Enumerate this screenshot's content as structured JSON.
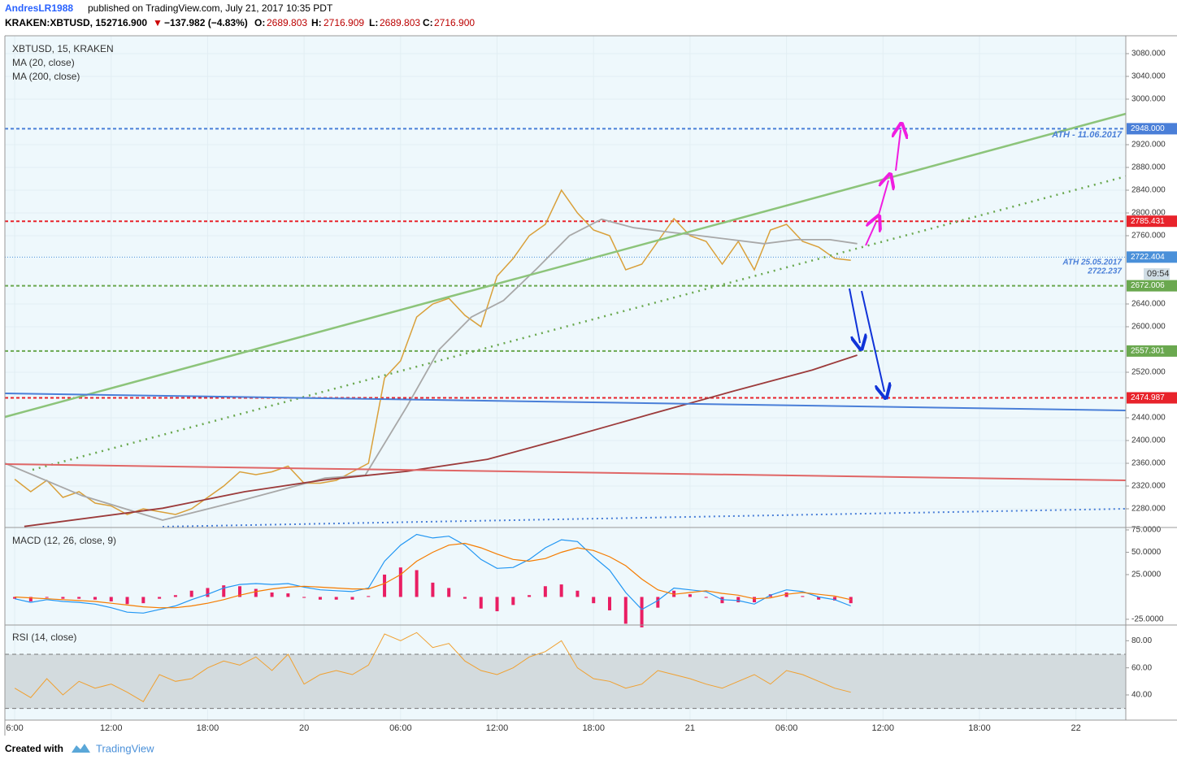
{
  "header": {
    "author": "AndresLR1988",
    "published": "published on TradingView.com, July 21, 2017 10:35 PDT",
    "symbol": "KRAKEN:XBTUSD, 15",
    "last": "2716.900",
    "arrow": "▼",
    "change": "−137.982 (−4.83%)",
    "open_label": "O:",
    "open": "2689.803",
    "high_label": "H:",
    "high": "2716.909",
    "low_label": "L:",
    "low": "2689.803",
    "close_label": "C:",
    "close": "2716.900"
  },
  "footer": {
    "created": "Created with",
    "brand": "TradingView"
  },
  "chart_data": [
    {
      "type": "line",
      "legend": [
        "XBTUSD, 15, KRAKEN",
        "MA (20, close)",
        "MA (200, close)"
      ],
      "x": [
        6,
        7,
        8,
        9,
        10,
        11,
        12,
        13,
        14,
        15,
        16,
        17,
        18,
        19,
        20,
        21,
        22,
        23,
        24,
        25,
        26,
        27,
        28,
        29,
        30,
        31,
        32,
        33,
        34,
        35,
        36,
        37,
        38,
        39,
        40,
        41,
        42,
        43,
        44,
        45,
        46,
        47,
        48,
        49,
        50,
        51,
        52,
        53,
        54,
        55,
        56,
        57,
        58
      ],
      "series": [
        {
          "name": "XBTUSD",
          "color": "#d9a03a",
          "values": [
            2332,
            2310,
            2330,
            2300,
            2310,
            2290,
            2285,
            2270,
            2280,
            2275,
            2270,
            2280,
            2300,
            2320,
            2345,
            2340,
            2345,
            2355,
            2325,
            2325,
            2330,
            2345,
            2360,
            2510,
            2540,
            2617,
            2640,
            2650,
            2620,
            2600,
            2689,
            2720,
            2760,
            2780,
            2840,
            2800,
            2770,
            2760,
            2700,
            2710,
            2750,
            2790,
            2760,
            2750,
            2710,
            2750,
            2700,
            2770,
            2780,
            2750,
            2740,
            2720,
            2716.9
          ]
        },
        {
          "name": "MA (20, close)",
          "color": "#a8a8a8",
          "x": [
            5.4,
            10.2,
            15.2,
            20.3,
            25.3,
            27.8,
            30.4,
            32.4,
            34.4,
            36.4,
            38.5,
            40.5,
            42.5,
            44.5,
            46.5,
            48.6,
            50.6,
            52.6,
            54.6,
            56.7,
            58.4
          ],
          "values": [
            2360,
            2303,
            2260,
            2296,
            2334,
            2339,
            2460,
            2560,
            2617,
            2646,
            2703,
            2760,
            2789,
            2774,
            2767,
            2760,
            2753,
            2746,
            2753,
            2753,
            2746
          ]
        },
        {
          "name": "MA (200, close)",
          "color": "#9c3b3b",
          "x": [
            6.6,
            15.2,
            20.3,
            25.3,
            30.4,
            35.4,
            40.5,
            45.5,
            50.6,
            55.6,
            58.4
          ],
          "values": [
            2249,
            2281,
            2310,
            2331,
            2346,
            2367,
            2406,
            2446,
            2486,
            2524,
            2550
          ]
        }
      ],
      "levels": [
        {
          "value": 2948,
          "label": "2948.000",
          "color": "#4a7fd8"
        },
        {
          "value": 2785.431,
          "label": "2785.431",
          "color": "#e8232b"
        },
        {
          "value": 2722.404,
          "label": "2722.404",
          "color": "#4a90d9"
        },
        {
          "value": 2672.006,
          "label": "2672.006",
          "color": "#6aa84f"
        },
        {
          "value": 2557.301,
          "label": "2557.301",
          "color": "#6aa84f"
        },
        {
          "value": 2474.987,
          "label": "2474.987",
          "color": "#e8232b"
        }
      ],
      "annotations": [
        "ATH - 11.06.2017",
        "ATH 25.05.2017",
        "2722.237",
        "09:54"
      ],
      "xlim": [
        5.39,
        75.1
      ],
      "xticks": [
        {
          "value": 6,
          "label": "6:00"
        },
        {
          "value": 12,
          "label": "12:00"
        },
        {
          "value": 18,
          "label": "18:00"
        },
        {
          "value": 24,
          "label": "20"
        },
        {
          "value": 30,
          "label": "06:00"
        },
        {
          "value": 36,
          "label": "12:00"
        },
        {
          "value": 42,
          "label": "18:00"
        },
        {
          "value": 48,
          "label": "21"
        },
        {
          "value": 54,
          "label": "06:00"
        },
        {
          "value": 60,
          "label": "12:00"
        },
        {
          "value": 66,
          "label": "18:00"
        },
        {
          "value": 72,
          "label": "22"
        }
      ],
      "ylim": [
        2248.6,
        3111.4
      ],
      "yticks": [
        {
          "value": 2280,
          "label": "2280.000"
        },
        {
          "value": 2320,
          "label": "2320.000"
        },
        {
          "value": 2360,
          "label": "2360.000"
        },
        {
          "value": 2400,
          "label": "2400.000"
        },
        {
          "value": 2440,
          "label": "2440.000"
        },
        {
          "value": 2520,
          "label": "2520.000"
        },
        {
          "value": 2600,
          "label": "2600.000"
        },
        {
          "value": 2640,
          "label": "2640.000"
        },
        {
          "value": 2760,
          "label": "2760.000"
        },
        {
          "value": 2800,
          "label": "2800.000"
        },
        {
          "value": 2840,
          "label": "2840.000"
        },
        {
          "value": 2880,
          "label": "2880.000"
        },
        {
          "value": 2920,
          "label": "2920.000"
        },
        {
          "value": 3000,
          "label": "3000.000"
        },
        {
          "value": 3040,
          "label": "3040.000"
        },
        {
          "value": 3080,
          "label": "3080.000"
        }
      ],
      "grid": true
    },
    {
      "type": "macd",
      "legend": [
        "MACD (12, 26, close, 9)"
      ],
      "x": [
        6,
        7,
        8,
        9,
        10,
        11,
        12,
        13,
        14,
        15,
        16,
        17,
        18,
        19,
        20,
        21,
        22,
        23,
        24,
        25,
        26,
        27,
        28,
        29,
        30,
        31,
        32,
        33,
        34,
        35,
        36,
        37,
        38,
        39,
        40,
        41,
        42,
        43,
        44,
        45,
        46,
        47,
        48,
        49,
        50,
        51,
        52,
        53,
        54,
        55,
        56,
        57,
        58
      ],
      "series": [
        {
          "name": "MACD",
          "color": "#2196f3",
          "values": [
            -2,
            -6,
            -3,
            -5,
            -6,
            -8,
            -12,
            -17,
            -18,
            -14,
            -10,
            -3,
            3,
            10,
            14,
            15,
            14,
            15,
            11,
            8,
            7,
            6,
            10,
            40,
            58,
            70,
            66,
            68,
            58,
            42,
            32,
            33,
            42,
            55,
            64,
            62,
            45,
            30,
            5,
            -14,
            -4,
            10,
            8,
            6,
            -3,
            -4,
            -8,
            2,
            8,
            6,
            0,
            -3,
            -10
          ]
        },
        {
          "name": "Signal",
          "color": "#f57c00",
          "values": [
            0,
            -1,
            -2,
            -3,
            -4,
            -5,
            -7,
            -9,
            -11,
            -12,
            -12,
            -10,
            -7,
            -3,
            2,
            6,
            9,
            11,
            12,
            11,
            10,
            9,
            9,
            15,
            25,
            40,
            50,
            58,
            60,
            55,
            48,
            42,
            40,
            43,
            50,
            55,
            52,
            45,
            35,
            20,
            8,
            3,
            5,
            7,
            4,
            2,
            -2,
            -1,
            3,
            5,
            3,
            1,
            -3
          ]
        },
        {
          "name": "Histogram",
          "color": "#e91e63",
          "values": [
            -2,
            -5,
            -1,
            -2,
            -2,
            -3,
            -5,
            -8,
            -7,
            -2,
            2,
            7,
            10,
            13,
            12,
            9,
            5,
            4,
            -1,
            -3,
            -3,
            -3,
            1,
            25,
            33,
            30,
            16,
            10,
            -2,
            -13,
            -16,
            -9,
            2,
            12,
            14,
            7,
            -7,
            -15,
            -30,
            -34,
            -12,
            7,
            3,
            -1,
            -7,
            -6,
            -6,
            3,
            5,
            1,
            -3,
            -4,
            -7
          ]
        }
      ],
      "xlim": [
        5.39,
        75.1
      ],
      "ylim": [
        -30.5,
        76.8
      ],
      "yticks": [
        {
          "value": -25,
          "label": "-25.0000"
        },
        {
          "value": 25,
          "label": "25.0000"
        },
        {
          "value": 50,
          "label": "50.0000"
        },
        {
          "value": 75,
          "label": "75.0000"
        }
      ]
    },
    {
      "type": "rsi",
      "legend": [
        "RSI (14, close)"
      ],
      "x": [
        6,
        7,
        8,
        9,
        10,
        11,
        12,
        13,
        14,
        15,
        16,
        17,
        18,
        19,
        20,
        21,
        22,
        23,
        24,
        25,
        26,
        27,
        28,
        29,
        30,
        31,
        32,
        33,
        34,
        35,
        36,
        37,
        38,
        39,
        40,
        41,
        42,
        43,
        44,
        45,
        46,
        47,
        48,
        49,
        50,
        51,
        52,
        53,
        54,
        55,
        56,
        57,
        58
      ],
      "series": [
        {
          "name": "RSI",
          "color": "#f0a030",
          "values": [
            45,
            38,
            52,
            40,
            50,
            45,
            48,
            42,
            35,
            55,
            50,
            52,
            60,
            65,
            62,
            68,
            58,
            70,
            48,
            55,
            58,
            55,
            62,
            85,
            80,
            86,
            75,
            78,
            65,
            58,
            55,
            60,
            68,
            72,
            80,
            60,
            52,
            50,
            45,
            48,
            58,
            55,
            52,
            48,
            45,
            50,
            55,
            48,
            58,
            55,
            50,
            45,
            42
          ]
        }
      ],
      "band": [
        30,
        70
      ],
      "xlim": [
        5.39,
        75.1
      ],
      "ylim": [
        22,
        91
      ],
      "yticks": [
        {
          "value": 40,
          "label": "40.00"
        },
        {
          "value": 60,
          "label": "60.00"
        },
        {
          "value": 80,
          "label": "80.00"
        }
      ]
    }
  ]
}
